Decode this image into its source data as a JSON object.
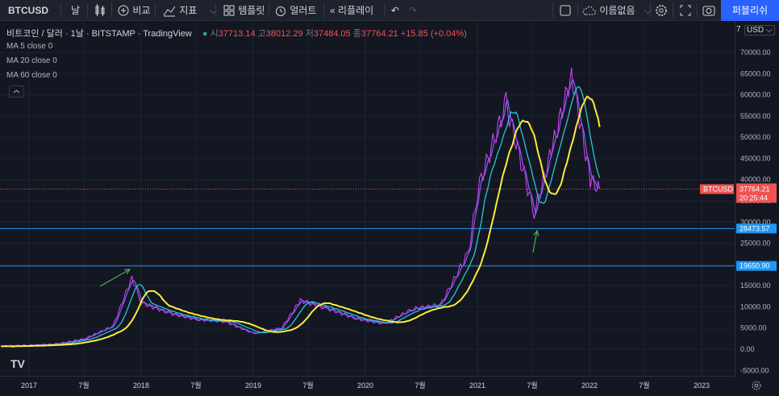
{
  "toolbar": {
    "symbol": "BTCUSD",
    "interval": "날",
    "compare": "비교",
    "indicators": "지표",
    "templates": "템플릿",
    "alerts": "얼러트",
    "replay": "리플레이",
    "layout_name": "이름없음",
    "publish": "퍼블리쉬"
  },
  "legend": {
    "title": "비트코인 / 달러 · 1날 · BITSTAMP · TradingView",
    "open_label": "시",
    "open": "37713.14",
    "high_label": "고",
    "high": "38012.29",
    "low_label": "저",
    "low": "37484.05",
    "close_label": "종",
    "close": "37764.21",
    "change": "+15.85 (+0.04%)"
  },
  "indicators": [
    "MA 5 close 0",
    "MA 20 close 0",
    "MA 60 close 0"
  ],
  "price_axis": {
    "currency": "USD",
    "page_count": "7",
    "ticks": [
      "70000.00",
      "65000.00",
      "60000.00",
      "55000.00",
      "50000.00",
      "45000.00",
      "40000.00",
      "35000.00",
      "30000.00",
      "25000.00",
      "20000.00",
      "15000.00",
      "10000.00",
      "5000.00",
      "0.00",
      "-5000.00"
    ],
    "symbol_tag": "BTCUSD",
    "last_price": "37764.21",
    "countdown": "20:25:44",
    "hline1": "28473.57",
    "hline2": "19650.90"
  },
  "time_axis": [
    "2017",
    "7월",
    "2018",
    "7월",
    "2019",
    "7월",
    "2020",
    "7월",
    "2021",
    "7월",
    "2022",
    "7월",
    "2023"
  ],
  "colors": {
    "accent": "#2962ff",
    "ma5": "#7b61ff",
    "ma20": "#26c6da",
    "ma60": "#ffeb3b",
    "price": "#e040fb",
    "hline": "#2196f3",
    "last": "#ef5350",
    "arrow": "#4caf50"
  },
  "chart_data": {
    "type": "line",
    "x": [
      "2016-10",
      "2017-01",
      "2017-04",
      "2017-07",
      "2017-10",
      "2017-12",
      "2018-01",
      "2018-04",
      "2018-07",
      "2018-10",
      "2019-01",
      "2019-04",
      "2019-06",
      "2019-09",
      "2019-12",
      "2020-03",
      "2020-06",
      "2020-09",
      "2020-12",
      "2021-01",
      "2021-04",
      "2021-07",
      "2021-09",
      "2021-11",
      "2022-01",
      "2022-02"
    ],
    "series": [
      {
        "values": [
          700,
          900,
          1200,
          2500,
          5500,
          17000,
          11000,
          8500,
          7000,
          6500,
          3700,
          5000,
          11500,
          9500,
          7200,
          6000,
          9500,
          10500,
          23000,
          38000,
          58000,
          32000,
          48000,
          65000,
          40000,
          37764
        ]
      }
    ],
    "ylim": [
      -6000,
      72000
    ]
  }
}
